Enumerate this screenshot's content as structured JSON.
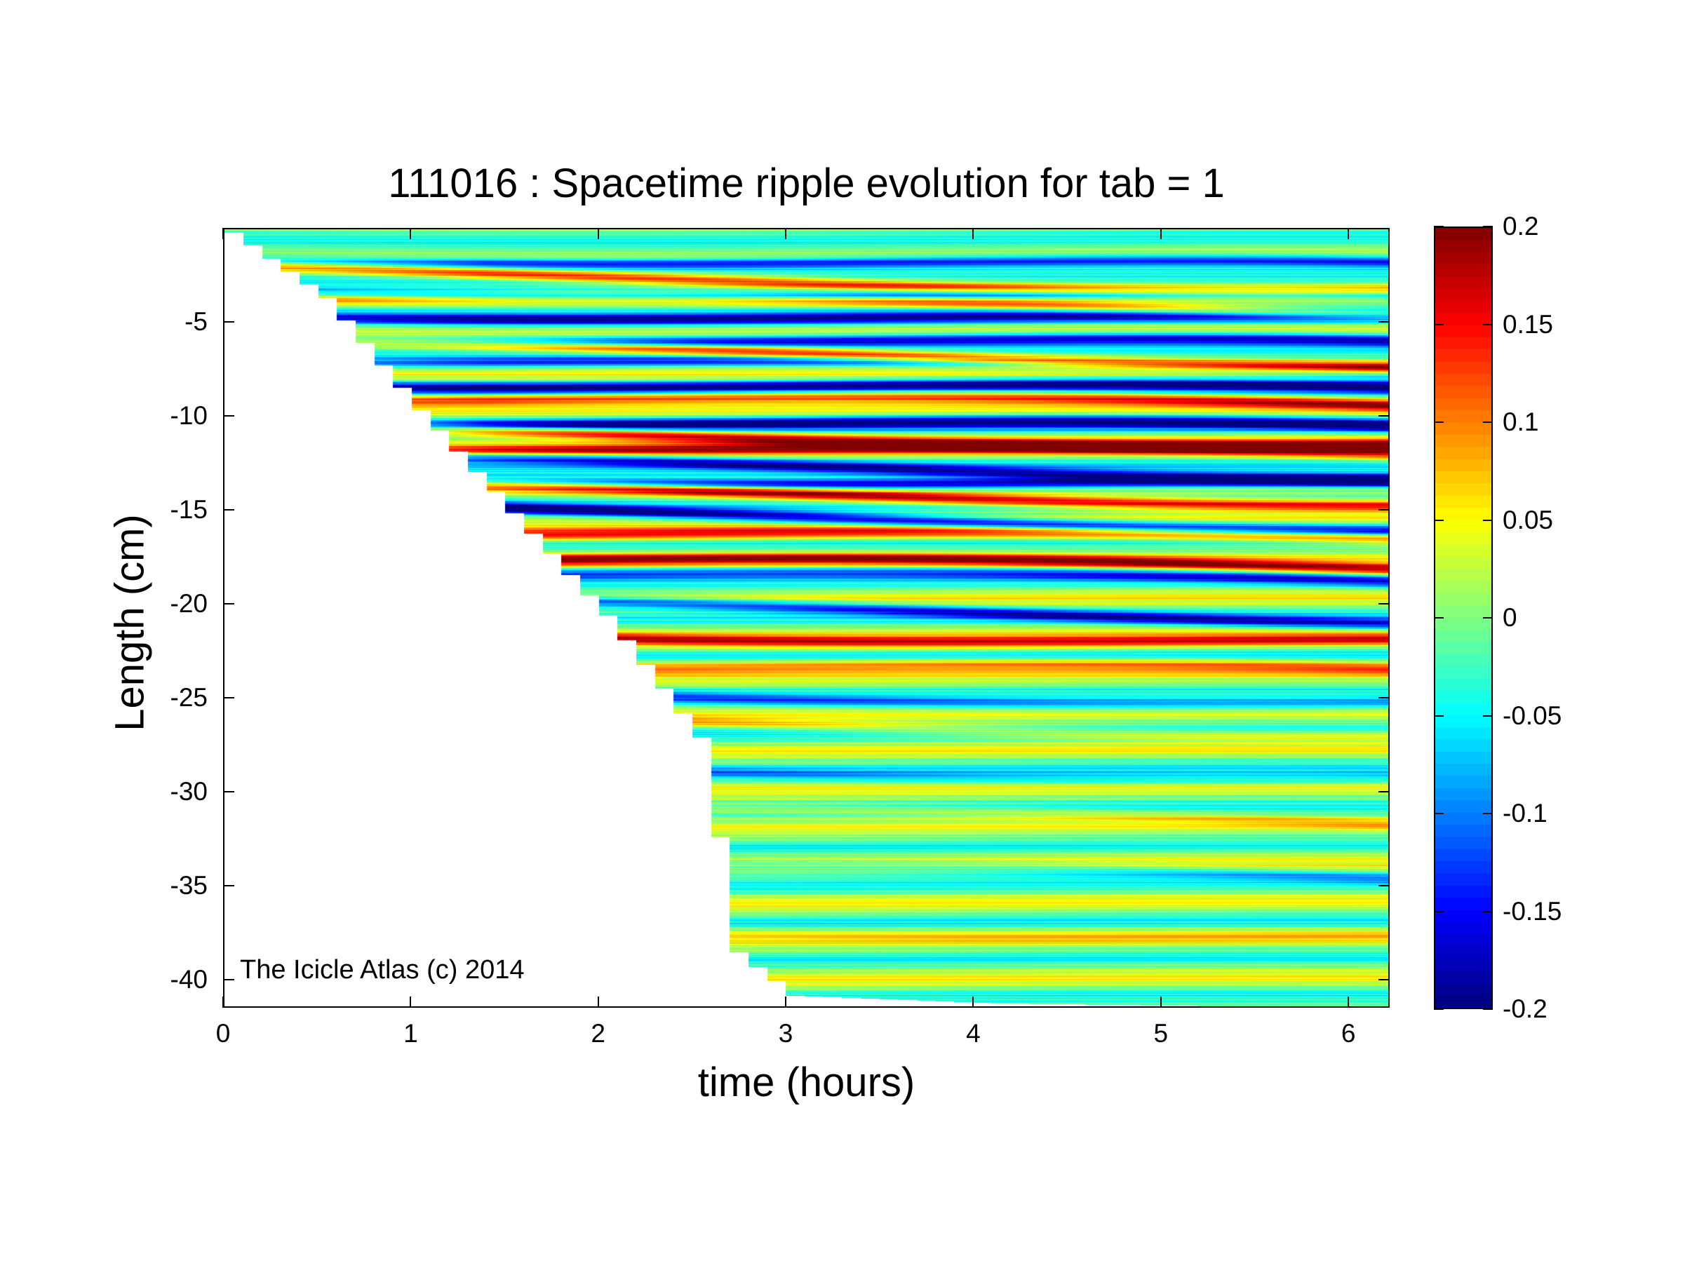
{
  "chart_data": {
    "type": "heatmap",
    "title": "111016 : Spacetime ripple evolution for tab = 1",
    "xlabel": "time (hours)",
    "ylabel": "Length (cm)",
    "xlim": [
      0,
      6.22
    ],
    "ylim": [
      -41.5,
      0
    ],
    "xticks": [
      0,
      1,
      2,
      3,
      4,
      5,
      6
    ],
    "xtick_labels": [
      "0",
      "1",
      "2",
      "3",
      "4",
      "5",
      "6"
    ],
    "yticks": [
      -5,
      -10,
      -15,
      -20,
      -25,
      -30,
      -35,
      -40
    ],
    "ytick_labels": [
      "-5",
      "-10",
      "-15",
      "-20",
      "-25",
      "-30",
      "-35",
      "-40"
    ],
    "colormap": "jet",
    "clim": [
      -0.2,
      0.2
    ],
    "colorbar_ticks": [
      0.2,
      0.15,
      0.1,
      0.05,
      0,
      -0.05,
      -0.1,
      -0.15,
      -0.2
    ],
    "colorbar_tick_labels": [
      "0.2",
      "0.15",
      "0.1",
      "0.05",
      "0",
      "-0.05",
      "-0.1",
      "-0.15",
      "-0.2"
    ],
    "data_boundary": [
      [
        0,
        0
      ],
      [
        0.5,
        -3.5
      ],
      [
        1.0,
        -9.5
      ],
      [
        1.5,
        -15.0
      ],
      [
        2.0,
        -20.5
      ],
      [
        2.5,
        -27.0
      ],
      [
        2.65,
        -35.0
      ],
      [
        2.7,
        -38.5
      ],
      [
        3.0,
        -40.8
      ],
      [
        4.0,
        -41.2
      ],
      [
        6.22,
        -41.5
      ]
    ],
    "bands": [
      {
        "y": -1.3,
        "value": -0.18
      },
      {
        "y": -2.3,
        "value": 0.17
      },
      {
        "y": -3.0,
        "value": -0.19
      },
      {
        "y": -3.7,
        "value": 0.12
      },
      {
        "y": -4.3,
        "value": -0.15
      },
      {
        "y": -5.5,
        "value": -0.2
      },
      {
        "y": -6.3,
        "value": 0.19
      },
      {
        "y": -7.0,
        "value": -0.12
      },
      {
        "y": -8.0,
        "value": -0.19
      },
      {
        "y": -8.8,
        "value": 0.16
      },
      {
        "y": -10.0,
        "value": -0.2
      },
      {
        "y": -10.6,
        "value": 0.18
      },
      {
        "y": -11.5,
        "value": 0.14
      },
      {
        "y": -12.3,
        "value": -0.15
      },
      {
        "y": -13.0,
        "value": -0.2
      },
      {
        "y": -13.7,
        "value": 0.2
      },
      {
        "y": -15.0,
        "value": -0.19
      },
      {
        "y": -16.0,
        "value": 0.15
      },
      {
        "y": -17.5,
        "value": 0.18
      },
      {
        "y": -18.2,
        "value": -0.12
      },
      {
        "y": -20.0,
        "value": -0.15
      },
      {
        "y": -21.3,
        "value": 0.13
      },
      {
        "y": -23.0,
        "value": 0.1
      },
      {
        "y": -24.5,
        "value": -0.09
      },
      {
        "y": -26.0,
        "value": 0.07
      },
      {
        "y": -28.5,
        "value": -0.06
      },
      {
        "y": -31.0,
        "value": 0.05
      },
      {
        "y": -34.0,
        "value": -0.06
      },
      {
        "y": -37.0,
        "value": 0.04
      }
    ]
  },
  "watermark": "The Icicle Atlas (c) 2014"
}
